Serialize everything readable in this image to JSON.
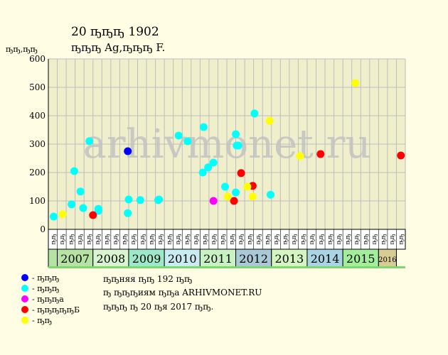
{
  "header": {
    "title": "20 ҧҧҧ 1902",
    "subtitle": "ҧҧҧ Ag,ҧҧҧ F."
  },
  "chart_data": {
    "type": "scatter",
    "ylabel": "ҧҧ,ҧҧ",
    "ylim": [
      0,
      600
    ],
    "yticks": [
      0,
      100,
      200,
      300,
      400,
      500,
      600
    ],
    "watermark": "arhivmonet.ru",
    "quarter_labels": [
      "ҧҧ",
      "ҧҧ",
      "ҧҧ",
      "ҧҧ",
      "ҧҧ",
      "ҧҧ",
      "ҧҧ",
      "ҧҧ",
      "ҧҧ",
      "ҧҧ",
      "ҧҧ",
      "ҧҧ",
      "ҧҧ",
      "ҧҧ",
      "ҧҧ",
      "ҧҧ",
      "ҧҧ",
      "ҧҧ",
      "ҧҧ",
      "ҧҧ",
      "ҧҧ",
      "ҧҧ",
      "ҧҧ",
      "ҧҧ",
      "ҧҧ",
      "ҧҧ",
      "ҧҧ",
      "ҧҧ",
      "ҧҧ",
      "ҧҧ",
      "ҧҧ",
      "ҧҧ",
      "ҧҧ",
      "ҧҧ",
      "ҧҧ",
      "ҧҧ",
      "ҧҧ",
      "ҧҧ",
      "ҧҧ",
      "ҧҧ"
    ],
    "years": [
      {
        "label": "",
        "start": 0,
        "end": 1,
        "color": "#b6e3a4"
      },
      {
        "label": "2007",
        "start": 1,
        "end": 5,
        "color": "#b6e3a4"
      },
      {
        "label": "2008",
        "start": 5,
        "end": 9,
        "color": "#d8f5cf"
      },
      {
        "label": "2009",
        "start": 9,
        "end": 13,
        "color": "#9de8c8"
      },
      {
        "label": "2010",
        "start": 13,
        "end": 17,
        "color": "#c9ecf2"
      },
      {
        "label": "2011",
        "start": 17,
        "end": 21,
        "color": "#c9f2c2"
      },
      {
        "label": "2012",
        "start": 21,
        "end": 25,
        "color": "#a9c8d8"
      },
      {
        "label": "2013",
        "start": 25,
        "end": 29,
        "color": "#d4f5c0"
      },
      {
        "label": "2014",
        "start": 29,
        "end": 33,
        "color": "#a9d4e4"
      },
      {
        "label": "2015",
        "start": 33,
        "end": 37,
        "color": "#a3ee9b"
      },
      {
        "label": "2016",
        "start": 37,
        "end": 39,
        "color": "#d9cc93"
      }
    ],
    "series": [
      {
        "name": "ҧҧҧ",
        "color": "#0000ff",
        "points": [
          [
            8.4,
            275
          ]
        ]
      },
      {
        "name": "ҧҧҧ",
        "color": "#00ffff",
        "points": [
          [
            0.1,
            45
          ],
          [
            2.1,
            88
          ],
          [
            2.4,
            205
          ],
          [
            3.1,
            133
          ],
          [
            3.4,
            75
          ],
          [
            4.1,
            310
          ],
          [
            5.1,
            65
          ],
          [
            5.1,
            72
          ],
          [
            8.4,
            57
          ],
          [
            8.5,
            105
          ],
          [
            9.8,
            103
          ],
          [
            11.8,
            103
          ],
          [
            11.9,
            105
          ],
          [
            14.1,
            330
          ],
          [
            15.1,
            310
          ],
          [
            16.8,
            200
          ],
          [
            16.9,
            360
          ],
          [
            17.4,
            218
          ],
          [
            18.0,
            235
          ],
          [
            19.3,
            150
          ],
          [
            20.5,
            130
          ],
          [
            20.5,
            335
          ],
          [
            20.6,
            295
          ],
          [
            20.8,
            295
          ],
          [
            22.6,
            408
          ],
          [
            24.4,
            122
          ]
        ]
      },
      {
        "name": "ҧҧҧa",
        "color": "#ff00ff",
        "points": [
          [
            18.0,
            100
          ]
        ]
      },
      {
        "name": "ҧҧҧҧҧБ",
        "color": "#ff0000",
        "points": [
          [
            4.5,
            50
          ],
          [
            20.3,
            100
          ],
          [
            21.1,
            198
          ],
          [
            22.4,
            153
          ],
          [
            30.0,
            265
          ],
          [
            39.0,
            260
          ]
        ]
      },
      {
        "name": "ҧҧ",
        "color": "#ffff00",
        "points": [
          [
            1.1,
            53
          ],
          [
            19.6,
            115
          ],
          [
            21.8,
            150
          ],
          [
            22.4,
            115
          ],
          [
            24.3,
            382
          ],
          [
            27.7,
            258
          ],
          [
            33.9,
            515
          ]
        ]
      }
    ]
  },
  "footer": {
    "line1": "ҧҧняя ҧҧ 192 ҧҧ",
    "line2": "ҧ ҧҧҧиям ҧҧа ARHIVMONET.RU",
    "line3": "ҧҧҧ ҧ 20 ҧя 2017 ҧҧ."
  }
}
